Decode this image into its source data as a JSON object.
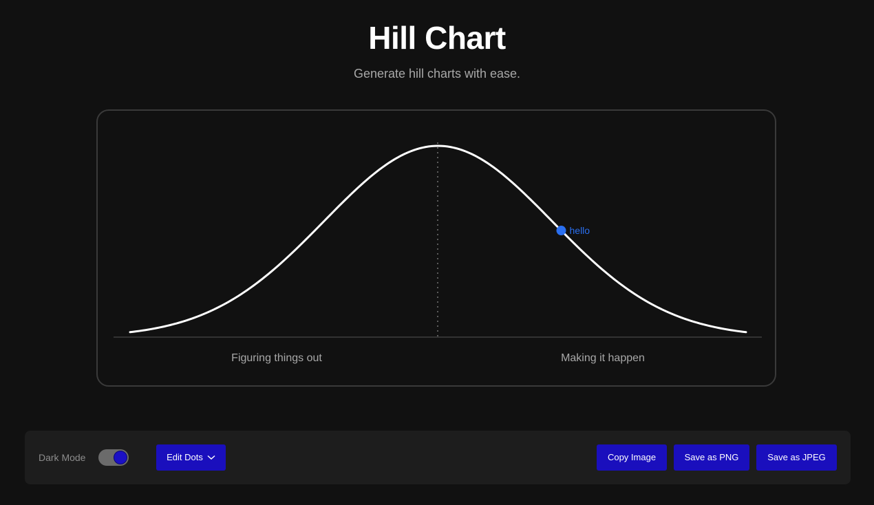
{
  "header": {
    "title": "Hill Chart",
    "subtitle": "Generate hill charts with ease."
  },
  "colors": {
    "background": "#111111",
    "card_border": "#3a3a3a",
    "curve": "#ffffff",
    "dot": "#2a6ff0",
    "button": "#1a0fbd",
    "toolbar": "#1d1d1d"
  },
  "chart_data": {
    "type": "line",
    "curve_shape": "bell",
    "xlim": [
      0,
      100
    ],
    "ylim": [
      0,
      100
    ],
    "midline": "dotted",
    "phases": [
      "Figuring things out",
      "Making it happen"
    ],
    "dots": [
      {
        "label": "hello",
        "x": 70,
        "color": "#2a6ff0"
      }
    ]
  },
  "toolbar": {
    "dark_mode_label": "Dark Mode",
    "dark_mode_on": true,
    "edit_dots_label": "Edit Dots",
    "edit_dots_icon": "chevron-down-icon",
    "copy_image_label": "Copy Image",
    "save_png_label": "Save as PNG",
    "save_jpeg_label": "Save as JPEG"
  }
}
